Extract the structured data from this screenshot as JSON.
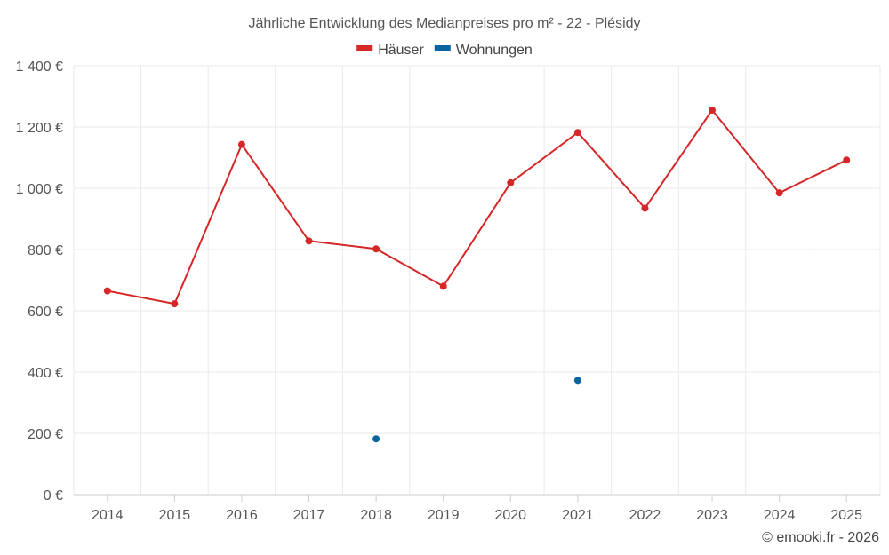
{
  "chart_data": {
    "type": "line",
    "title": "Jährliche Entwicklung des Medianpreises pro m² - 22 - Plésidy",
    "xlabel": "",
    "ylabel": "",
    "categories": [
      "2014",
      "2015",
      "2016",
      "2017",
      "2018",
      "2019",
      "2020",
      "2021",
      "2022",
      "2023",
      "2024",
      "2025"
    ],
    "ylim": [
      0,
      1400
    ],
    "yticks": [
      0,
      200,
      400,
      600,
      800,
      1000,
      1200,
      1400
    ],
    "ytick_labels": [
      "0 €",
      "200 €",
      "400 €",
      "600 €",
      "800 €",
      "1 000 €",
      "1 200 €",
      "1 400 €"
    ],
    "grid": true,
    "legend_position": "top-center",
    "series": [
      {
        "name": "Häuser",
        "color": "#d62728",
        "values": [
          665,
          623,
          1143,
          828,
          802,
          680,
          1018,
          1182,
          935,
          1255,
          985,
          1092
        ]
      },
      {
        "name": "Wohnungen",
        "color": "#0b64a0",
        "values": [
          null,
          null,
          null,
          null,
          182,
          null,
          null,
          373,
          null,
          null,
          null,
          null
        ]
      }
    ]
  },
  "footer": {
    "copyright": "© emooki.fr - 2026"
  }
}
